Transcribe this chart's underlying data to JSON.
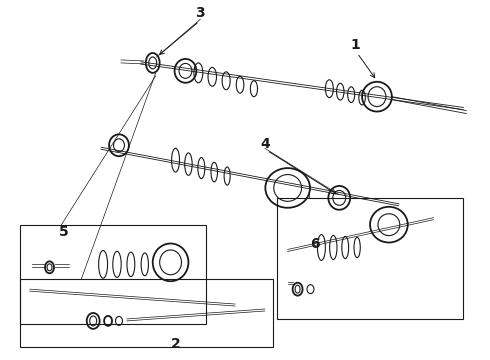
{
  "bg_color": "#ffffff",
  "line_color": "#1a1a1a",
  "lw": 0.8,
  "tlw": 1.3,
  "figsize": [
    4.9,
    3.6
  ],
  "dpi": 100
}
